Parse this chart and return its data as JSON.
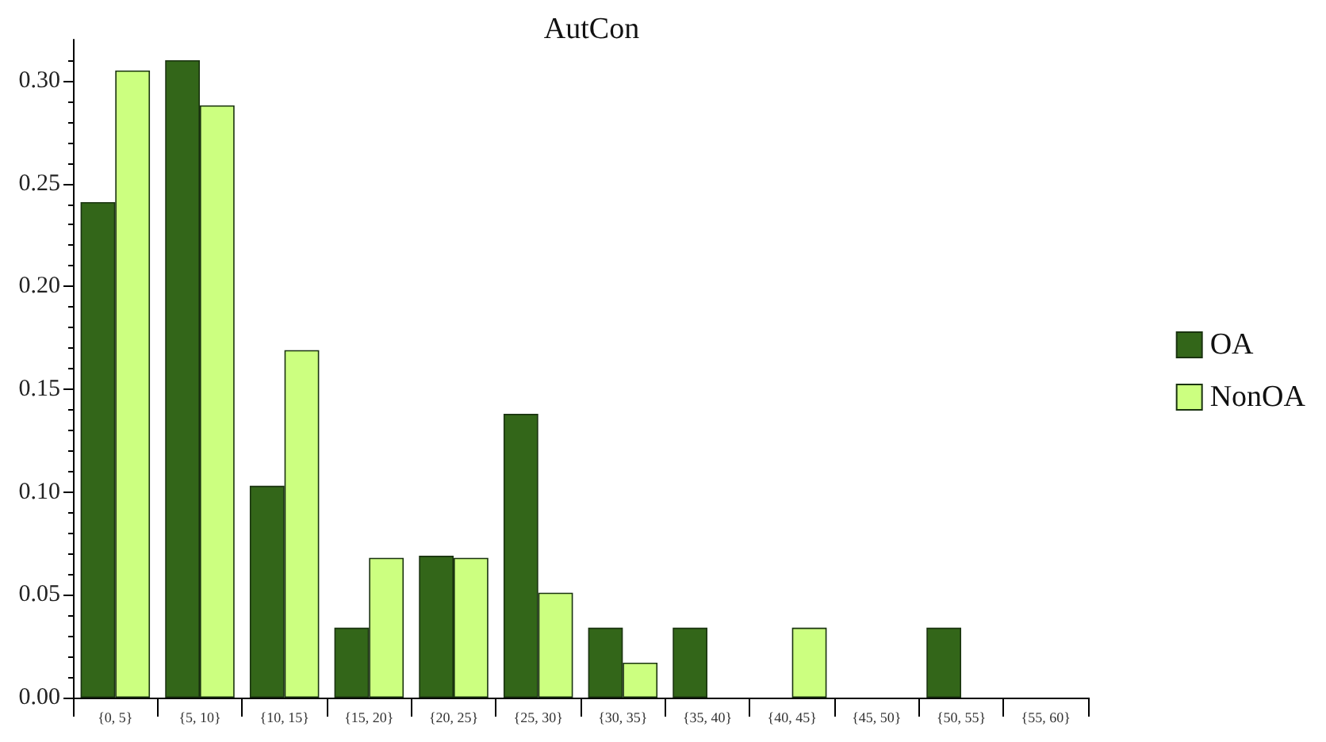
{
  "chart_data": {
    "type": "bar",
    "title": "AutCon",
    "categories": [
      "{0, 5}",
      "{5, 10}",
      "{10, 15}",
      "{15, 20}",
      "{20, 25}",
      "{25, 30}",
      "{30, 35}",
      "{35, 40}",
      "{40, 45}",
      "{45, 50}",
      "{50, 55}",
      "{55, 60}"
    ],
    "series": [
      {
        "name": "OA",
        "color": "#336619",
        "values": [
          0.241,
          0.31,
          0.103,
          0.034,
          0.069,
          0.138,
          0.034,
          0.034,
          0,
          0,
          0.034,
          0
        ]
      },
      {
        "name": "NonOA",
        "color": "#ccff80",
        "values": [
          0.305,
          0.288,
          0.169,
          0.068,
          0.068,
          0.051,
          0.017,
          0,
          0.034,
          0,
          0,
          0
        ]
      }
    ],
    "ylim": [
      0,
      0.32
    ],
    "yticks": [
      {
        "value": 0,
        "label": "0.00"
      },
      {
        "value": 0.05,
        "label": "0.05"
      },
      {
        "value": 0.1,
        "label": "0.10"
      },
      {
        "value": 0.15,
        "label": "0.15"
      },
      {
        "value": 0.2,
        "label": "0.20"
      },
      {
        "value": 0.25,
        "label": "0.25"
      },
      {
        "value": 0.3,
        "label": "0.30"
      }
    ],
    "grid": false,
    "legend": "right"
  }
}
